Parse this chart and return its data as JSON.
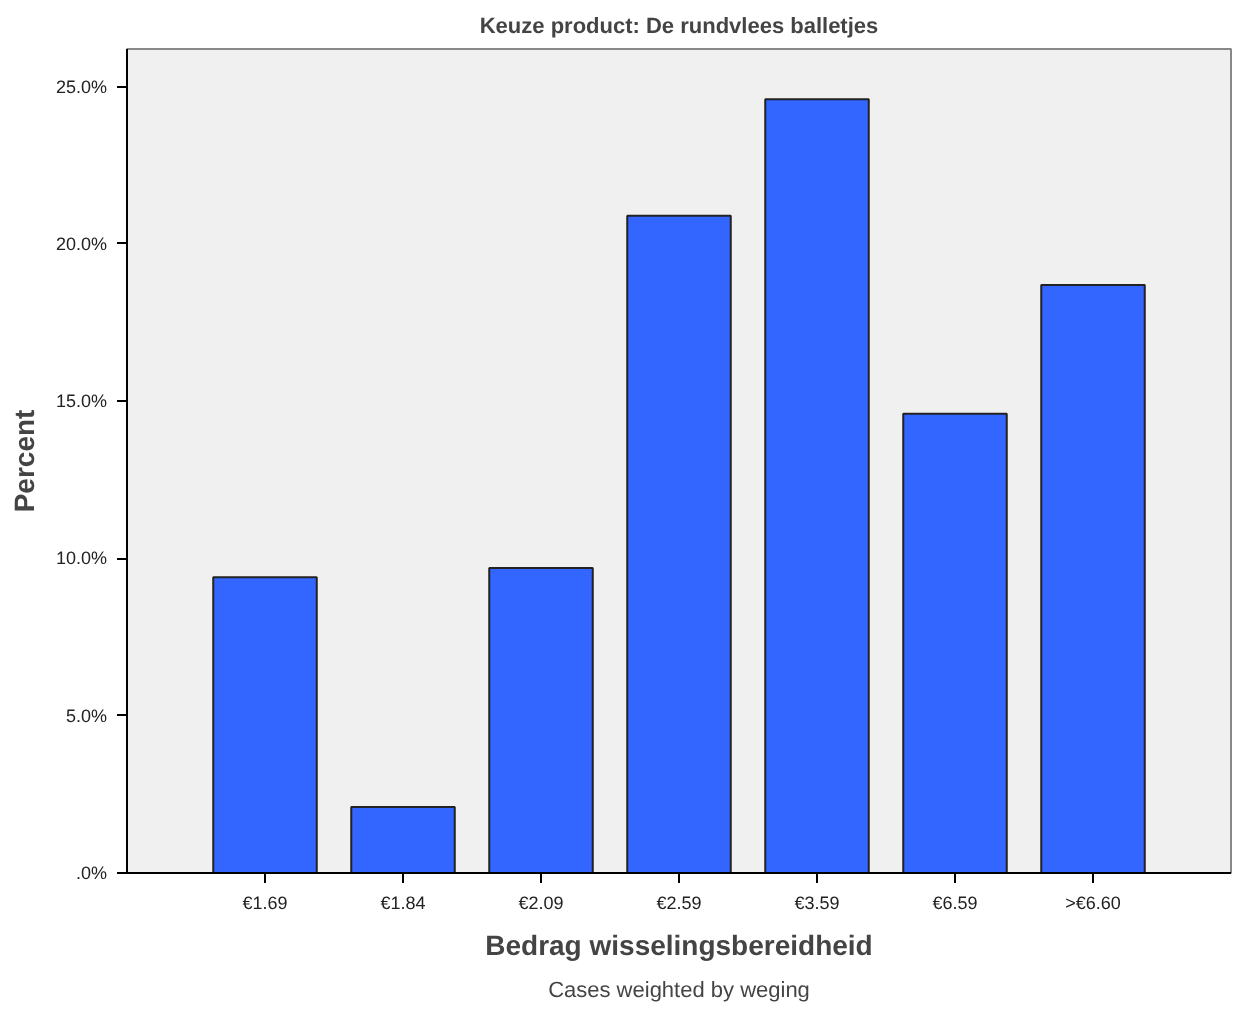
{
  "chart_data": {
    "type": "bar",
    "title": "Keuze product: De rundvlees balletjes",
    "xlabel": "Bedrag wisselingsbereidheid",
    "ylabel": "Percent",
    "categories": [
      "€1.69",
      "€1.84",
      "€2.09",
      "€2.59",
      "€3.59",
      "€6.59",
      ">€6.60"
    ],
    "values": [
      9.4,
      2.1,
      9.7,
      20.9,
      24.6,
      14.6,
      18.7
    ],
    "color": "#3366ff",
    "ylim": [
      0,
      26.2
    ],
    "yticks": [
      {
        "value": 0,
        "label": ".0%"
      },
      {
        "value": 5,
        "label": "5.0%"
      },
      {
        "value": 10,
        "label": "10.0%"
      },
      {
        "value": 15,
        "label": "15.0%"
      },
      {
        "value": 20,
        "label": "20.0%"
      },
      {
        "value": 25,
        "label": "25.0%"
      }
    ],
    "grid": false,
    "annotations": [
      "Cases weighted by weging"
    ]
  }
}
